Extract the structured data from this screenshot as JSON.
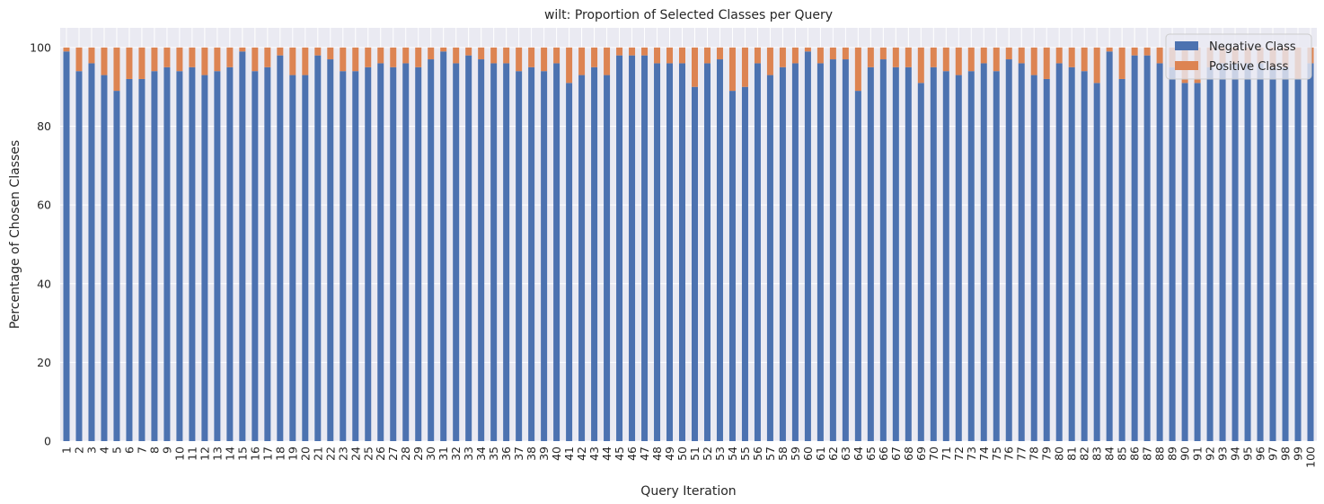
{
  "chart_data": {
    "type": "bar",
    "stacked": true,
    "title": "wilt: Proportion of Selected Classes per Query",
    "xlabel": "Query Iteration",
    "ylabel": "Percentage of Chosen Classes",
    "ylim": [
      0,
      105
    ],
    "yticks": [
      0,
      20,
      40,
      60,
      80,
      100
    ],
    "grid": true,
    "legend_position": "top-right",
    "categories": [
      "1",
      "2",
      "3",
      "4",
      "5",
      "6",
      "7",
      "8",
      "9",
      "10",
      "11",
      "12",
      "13",
      "14",
      "15",
      "16",
      "17",
      "18",
      "19",
      "20",
      "21",
      "22",
      "23",
      "24",
      "25",
      "26",
      "27",
      "28",
      "29",
      "30",
      "31",
      "32",
      "33",
      "34",
      "35",
      "36",
      "37",
      "38",
      "39",
      "40",
      "41",
      "42",
      "43",
      "44",
      "45",
      "46",
      "47",
      "48",
      "49",
      "50",
      "51",
      "52",
      "53",
      "54",
      "55",
      "56",
      "57",
      "58",
      "59",
      "60",
      "61",
      "62",
      "63",
      "64",
      "65",
      "66",
      "67",
      "68",
      "69",
      "70",
      "71",
      "72",
      "73",
      "74",
      "75",
      "76",
      "77",
      "78",
      "79",
      "80",
      "81",
      "82",
      "83",
      "84",
      "85",
      "86",
      "87",
      "88",
      "89",
      "90",
      "91",
      "92",
      "93",
      "94",
      "95",
      "96",
      "97",
      "98",
      "99",
      "100"
    ],
    "series": [
      {
        "name": "Negative Class",
        "color": "#4c72b0",
        "values": [
          99,
          94,
          96,
          93,
          89,
          92,
          92,
          94,
          95,
          94,
          95,
          93,
          94,
          95,
          99,
          94,
          95,
          98,
          93,
          93,
          98,
          97,
          94,
          94,
          95,
          96,
          95,
          96,
          95,
          97,
          99,
          96,
          98,
          97,
          96,
          96,
          94,
          95,
          94,
          96,
          91,
          93,
          95,
          93,
          98,
          98,
          98,
          96,
          96,
          96,
          90,
          96,
          97,
          89,
          90,
          96,
          93,
          95,
          96,
          99,
          96,
          97,
          97,
          89,
          95,
          97,
          95,
          95,
          91,
          95,
          94,
          93,
          94,
          96,
          94,
          97,
          96,
          93,
          92,
          96,
          95,
          94,
          91,
          99,
          92,
          98,
          98,
          96,
          95,
          91,
          91,
          95,
          96,
          96,
          96,
          96,
          95,
          95,
          92,
          96
        ]
      },
      {
        "name": "Positive Class",
        "color": "#dd8452",
        "values": [
          1,
          6,
          4,
          7,
          11,
          8,
          8,
          6,
          5,
          6,
          5,
          7,
          6,
          5,
          1,
          6,
          5,
          2,
          7,
          7,
          2,
          3,
          6,
          6,
          5,
          4,
          5,
          4,
          5,
          3,
          1,
          4,
          2,
          3,
          4,
          4,
          6,
          5,
          6,
          4,
          9,
          7,
          5,
          7,
          2,
          2,
          2,
          4,
          4,
          4,
          10,
          4,
          3,
          11,
          10,
          4,
          7,
          5,
          4,
          1,
          4,
          3,
          3,
          11,
          5,
          3,
          5,
          5,
          9,
          5,
          6,
          7,
          6,
          4,
          6,
          3,
          4,
          7,
          8,
          4,
          5,
          6,
          9,
          1,
          8,
          2,
          2,
          4,
          5,
          9,
          9,
          5,
          4,
          4,
          4,
          4,
          5,
          5,
          8,
          4
        ]
      }
    ]
  }
}
